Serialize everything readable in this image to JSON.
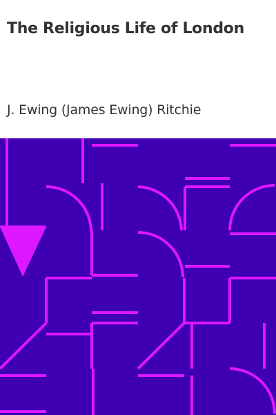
{
  "book": {
    "title": "The Religious Life of London",
    "author": "J. Ewing (James Ewing) Ritchie"
  },
  "colors": {
    "background": "#ffffff",
    "top_strip": "#ffffff",
    "text": "#333333",
    "pattern_background": "#3f00b2",
    "pattern_lines": "#dd17ff"
  },
  "cover_art": {
    "icon": "geometric-pattern-icon"
  }
}
